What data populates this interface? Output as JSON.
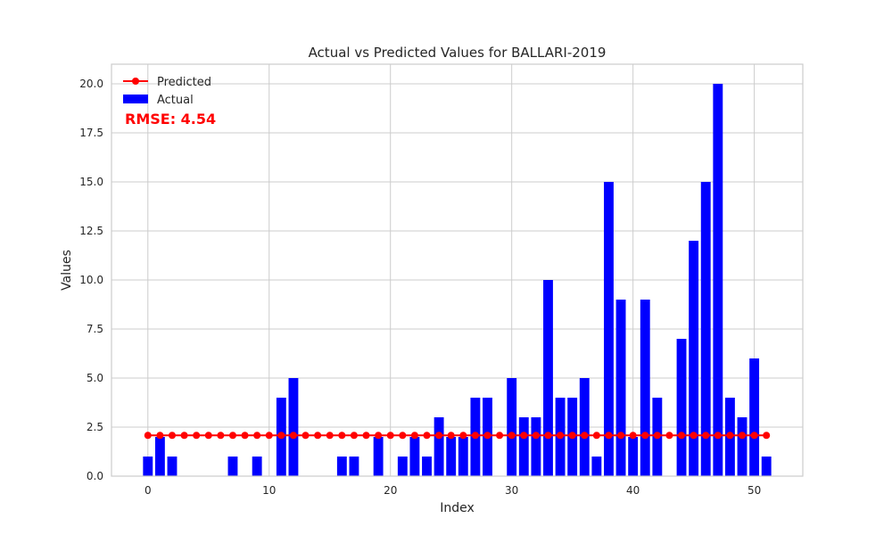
{
  "chart_data": {
    "type": "bar",
    "title": "Actual vs Predicted Values for BALLARI-2019",
    "xlabel": "Index",
    "ylabel": "Values",
    "xlim": [
      -3,
      54
    ],
    "ylim": [
      0,
      21
    ],
    "xticks": [
      0,
      10,
      20,
      30,
      40,
      50
    ],
    "yticks": [
      0.0,
      2.5,
      5.0,
      7.5,
      10.0,
      12.5,
      15.0,
      17.5,
      20.0
    ],
    "ytick_labels": [
      "0.0",
      "2.5",
      "5.0",
      "7.5",
      "10.0",
      "12.5",
      "15.0",
      "17.5",
      "20.0"
    ],
    "grid": true,
    "legend_position": "top-left",
    "annotation": "RMSE: 4.54",
    "series": [
      {
        "name": "Actual",
        "kind": "bar",
        "color": "#0000ff",
        "x": [
          0,
          1,
          2,
          3,
          4,
          5,
          6,
          7,
          8,
          9,
          10,
          11,
          12,
          13,
          14,
          15,
          16,
          17,
          18,
          19,
          20,
          21,
          22,
          23,
          24,
          25,
          26,
          27,
          28,
          29,
          30,
          31,
          32,
          33,
          34,
          35,
          36,
          37,
          38,
          39,
          40,
          41,
          42,
          43,
          44,
          45,
          46,
          47,
          48,
          49,
          50,
          51
        ],
        "values": [
          1,
          2,
          1,
          0,
          0,
          0,
          0,
          1,
          0,
          1,
          0,
          4,
          5,
          0,
          0,
          0,
          1,
          1,
          0,
          2,
          0,
          1,
          2,
          1,
          3,
          2,
          2,
          4,
          4,
          0,
          5,
          3,
          3,
          10,
          4,
          4,
          5,
          1,
          15,
          9,
          2,
          9,
          4,
          0,
          7,
          12,
          15,
          20,
          4,
          3,
          6,
          1
        ]
      },
      {
        "name": "Predicted",
        "kind": "line",
        "marker": "circle",
        "color": "#ff0000",
        "x": [
          0,
          1,
          2,
          3,
          4,
          5,
          6,
          7,
          8,
          9,
          10,
          11,
          12,
          13,
          14,
          15,
          16,
          17,
          18,
          19,
          20,
          21,
          22,
          23,
          24,
          25,
          26,
          27,
          28,
          29,
          30,
          31,
          32,
          33,
          34,
          35,
          36,
          37,
          38,
          39,
          40,
          41,
          42,
          43,
          44,
          45,
          46,
          47,
          48,
          49,
          50,
          51
        ],
        "values": [
          2.08,
          2.08,
          2.08,
          2.08,
          2.08,
          2.08,
          2.08,
          2.08,
          2.08,
          2.08,
          2.08,
          2.08,
          2.08,
          2.08,
          2.08,
          2.08,
          2.08,
          2.08,
          2.08,
          2.08,
          2.08,
          2.08,
          2.08,
          2.08,
          2.08,
          2.08,
          2.08,
          2.08,
          2.08,
          2.08,
          2.08,
          2.08,
          2.08,
          2.08,
          2.08,
          2.08,
          2.08,
          2.08,
          2.08,
          2.08,
          2.08,
          2.08,
          2.08,
          2.08,
          2.08,
          2.08,
          2.08,
          2.08,
          2.08,
          2.08,
          2.08,
          2.08
        ]
      }
    ]
  }
}
